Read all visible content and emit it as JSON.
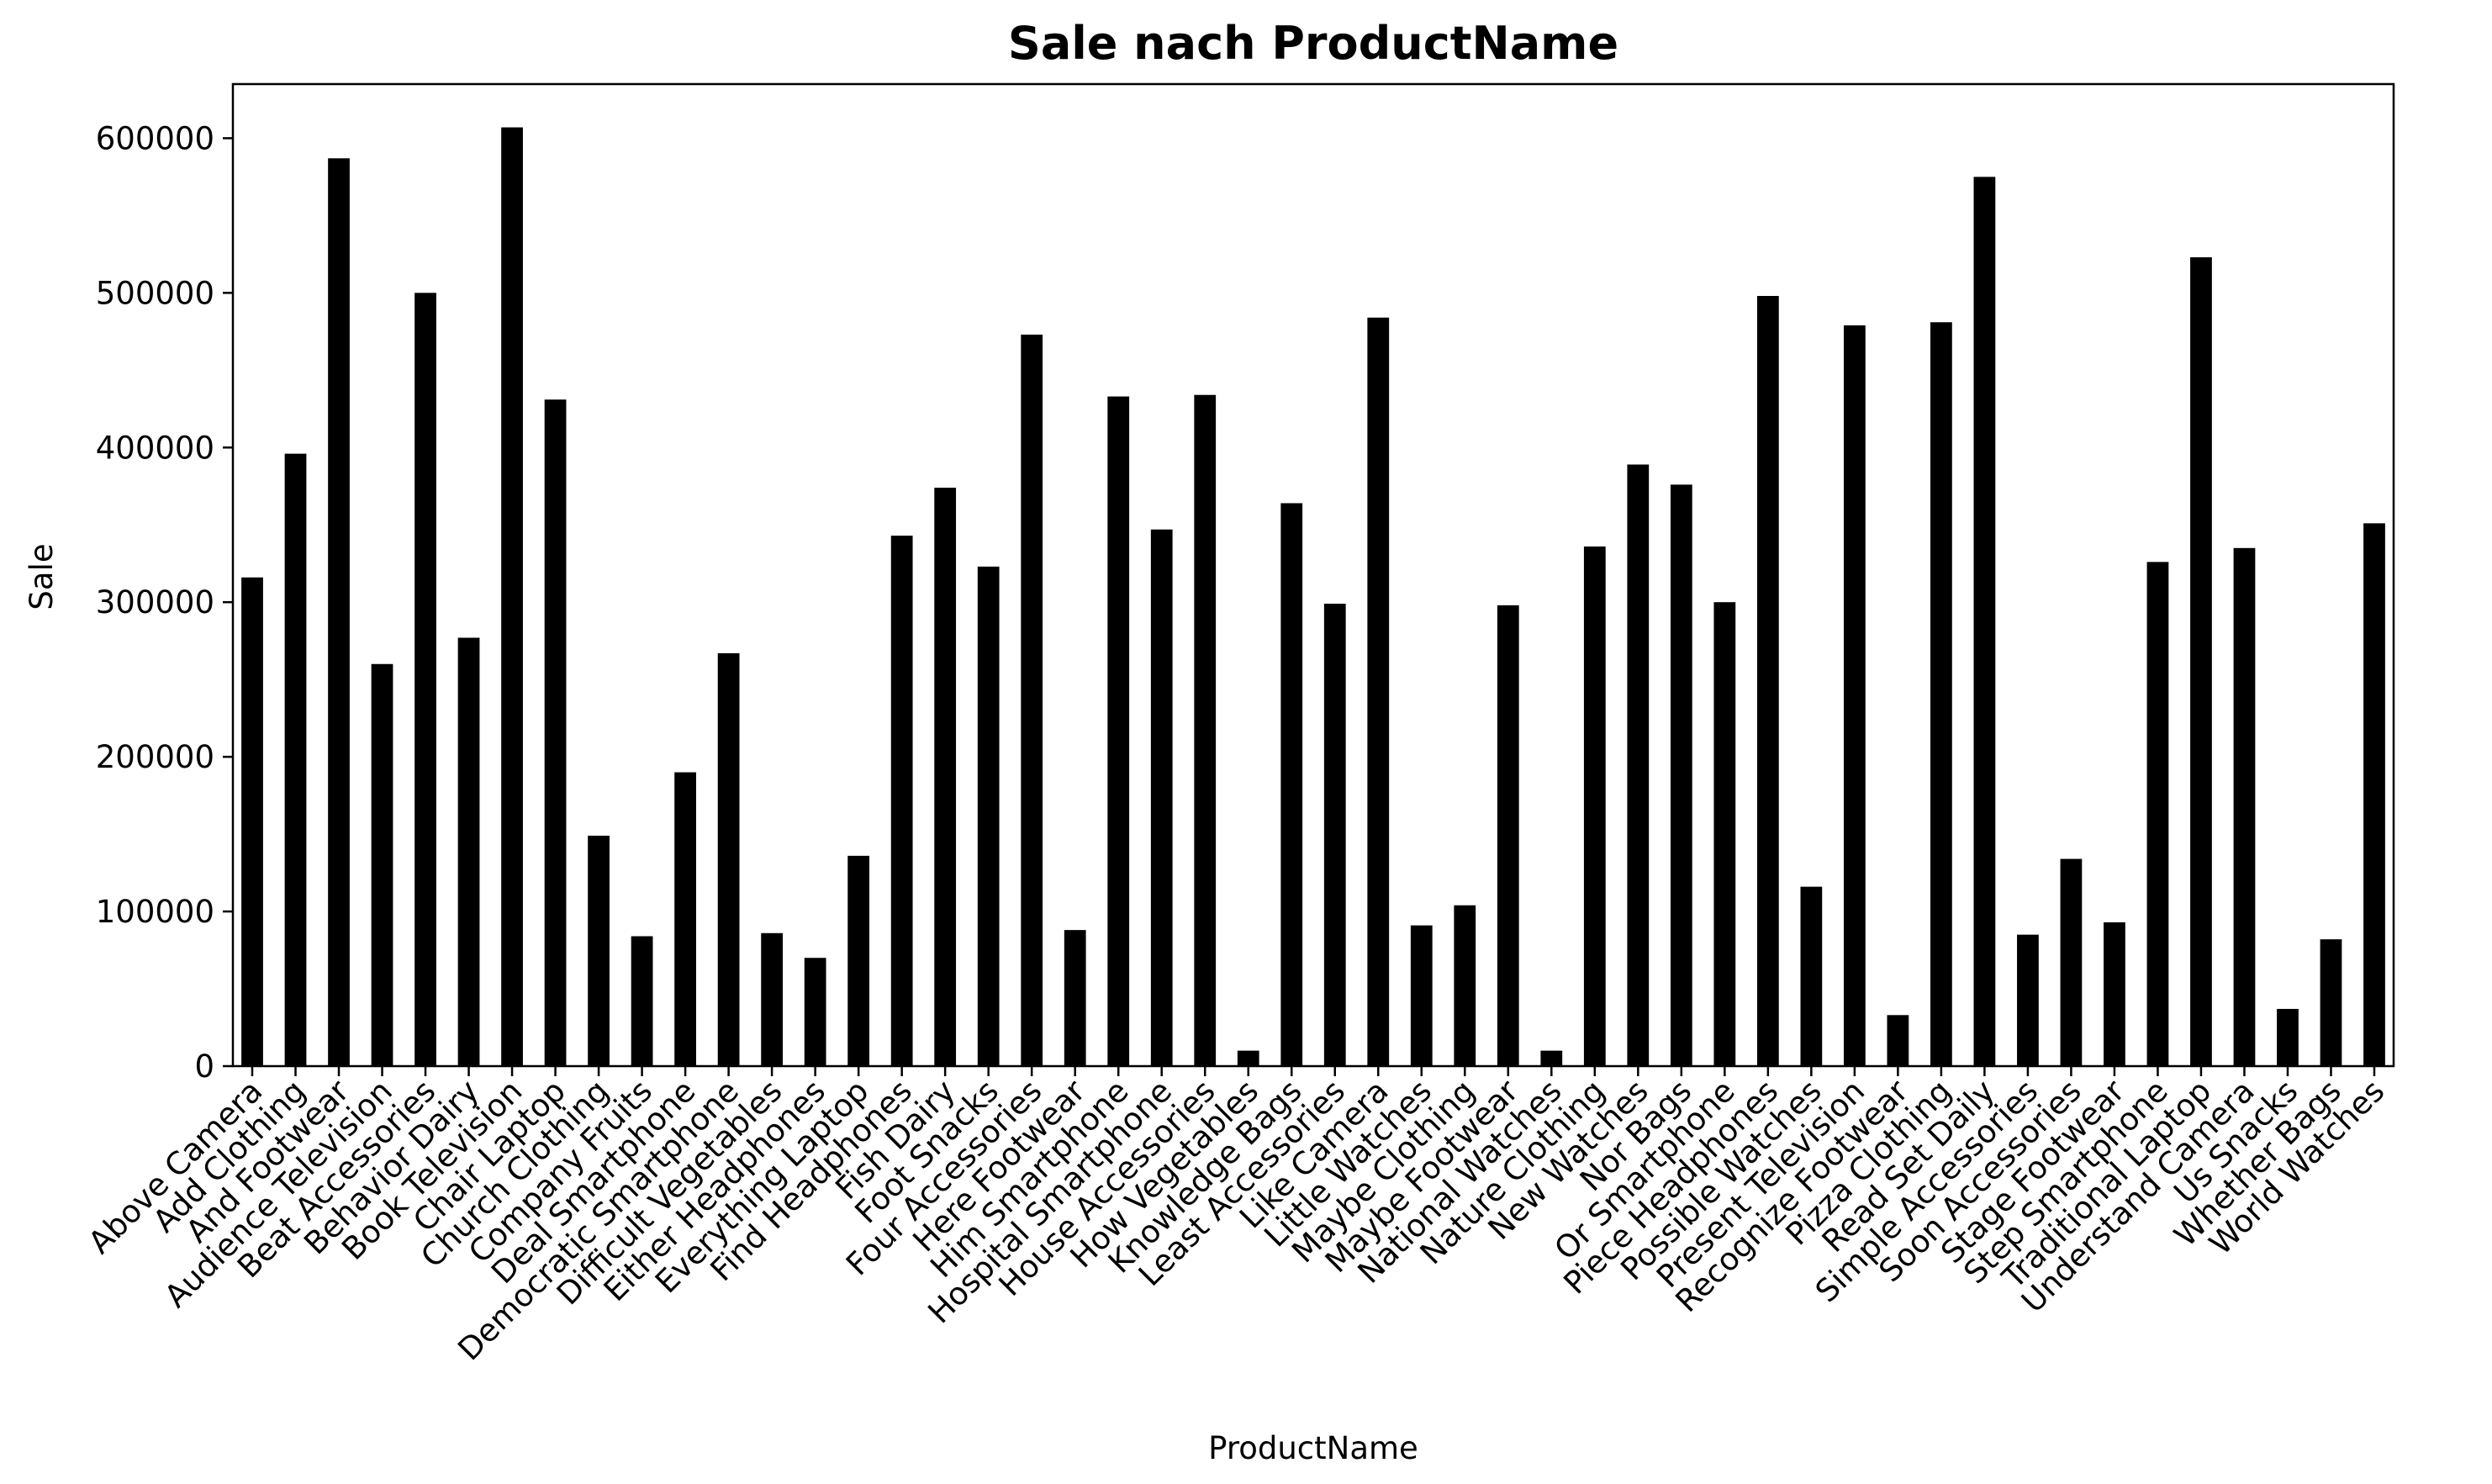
{
  "chart_data": {
    "type": "bar",
    "title": "Sale nach ProductName",
    "xlabel": "ProductName",
    "ylabel": "Sale",
    "ylim": [
      0,
      635000
    ],
    "yticks": [
      0,
      100000,
      200000,
      300000,
      400000,
      500000,
      600000
    ],
    "grid": false,
    "legend": "none",
    "bar_color": "#000000",
    "categories": [
      "Above Camera",
      "Add Clothing",
      "And Footwear",
      "Audience Television",
      "Beat Accessories",
      "Behavior Dairy",
      "Book Television",
      "Chair Laptop",
      "Church Clothing",
      "Company Fruits",
      "Deal Smartphone",
      "Democratic Smartphone",
      "Difficult Vegetables",
      "Either Headphones",
      "Everything Laptop",
      "Find Headphones",
      "Fish Dairy",
      "Foot Snacks",
      "Four Accessories",
      "Here Footwear",
      "Him Smartphone",
      "Hospital Smartphone",
      "House Accessories",
      "How Vegetables",
      "Knowledge Bags",
      "Least Accessories",
      "Like Camera",
      "Little Watches",
      "Maybe Clothing",
      "Maybe Footwear",
      "National Watches",
      "Nature Clothing",
      "New Watches",
      "Nor Bags",
      "Or Smartphone",
      "Piece Headphones",
      "Possible Watches",
      "Present Television",
      "Recognize Footwear",
      "Pizza Clothing",
      "Read Set Daily",
      "Simple Accessories",
      "Soon Accessories",
      "Stage Footwear",
      "Step Smartphone",
      "Traditional Laptop",
      "Understand Camera",
      "Us Snacks",
      "Whether Bags",
      "World Watches"
    ],
    "values": [
      316000,
      396000,
      587000,
      260000,
      500000,
      277000,
      607000,
      431000,
      149000,
      84000,
      190000,
      267000,
      86000,
      70000,
      136000,
      343000,
      374000,
      323000,
      473000,
      88000,
      433000,
      347000,
      434000,
      10000,
      364000,
      299000,
      484000,
      91000,
      104000,
      298000,
      10000,
      336000,
      389000,
      376000,
      300000,
      498000,
      116000,
      479000,
      33000,
      481000,
      575000,
      85000,
      134000,
      93000,
      326000,
      523000,
      335000,
      37000,
      82000,
      351000
    ]
  }
}
